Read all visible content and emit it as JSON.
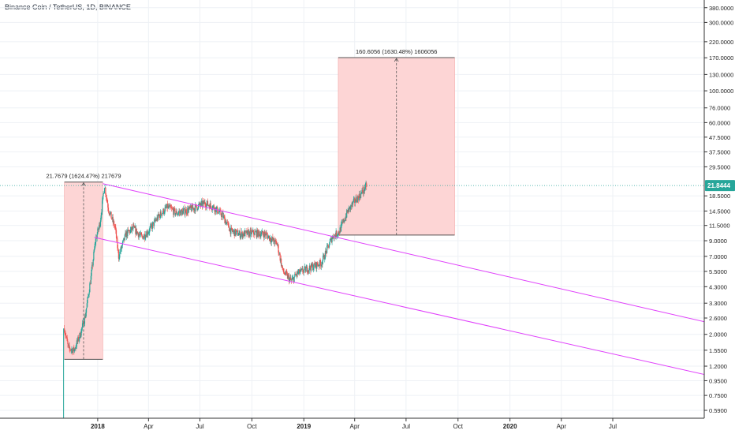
{
  "header": {
    "title": "Binance Coin / TetherUS, 1D, BINANCE"
  },
  "chart_data": {
    "type": "candlestick",
    "title": "Binance Coin / TetherUS, 1D, BINANCE",
    "scale": "log",
    "ylim": [
      0.52,
      430
    ],
    "y_ticks": [
      {
        "v": 380,
        "label": "380.0000"
      },
      {
        "v": 300,
        "label": "300.0000"
      },
      {
        "v": 220,
        "label": "220.0000"
      },
      {
        "v": 170,
        "label": "170.0000"
      },
      {
        "v": 130,
        "label": "130.0000"
      },
      {
        "v": 100,
        "label": "100.0000"
      },
      {
        "v": 76,
        "label": "76.0000"
      },
      {
        "v": 60,
        "label": "60.0000"
      },
      {
        "v": 47.5,
        "label": "47.5000"
      },
      {
        "v": 37.5,
        "label": "37.5000"
      },
      {
        "v": 29.5,
        "label": "29.5000"
      },
      {
        "v": 18.5,
        "label": "18.5000"
      },
      {
        "v": 14.5,
        "label": "14.5000"
      },
      {
        "v": 11.5,
        "label": "11.5000"
      },
      {
        "v": 9,
        "label": "9.0000"
      },
      {
        "v": 7,
        "label": "7.0000"
      },
      {
        "v": 5.5,
        "label": "5.5000"
      },
      {
        "v": 4.3,
        "label": "4.3000"
      },
      {
        "v": 3.3,
        "label": "3.3000"
      },
      {
        "v": 2.6,
        "label": "2.6000"
      },
      {
        "v": 2,
        "label": "2.0000"
      },
      {
        "v": 1.55,
        "label": "1.5500"
      },
      {
        "v": 1.2,
        "label": "1.2000"
      },
      {
        "v": 0.95,
        "label": "0.9500"
      },
      {
        "v": 0.75,
        "label": "0.7500"
      },
      {
        "v": 0.59,
        "label": "0.5900"
      }
    ],
    "x_ticks": [
      {
        "date": "2018-01-01",
        "label": "2018",
        "bold": true
      },
      {
        "date": "2018-04-01",
        "label": "Apr"
      },
      {
        "date": "2018-07-01",
        "label": "Jul"
      },
      {
        "date": "2018-10-01",
        "label": "Oct"
      },
      {
        "date": "2019-01-01",
        "label": "2019",
        "bold": true
      },
      {
        "date": "2019-04-01",
        "label": "Apr"
      },
      {
        "date": "2019-07-01",
        "label": "Jul"
      },
      {
        "date": "2019-10-01",
        "label": "Oct"
      },
      {
        "date": "2020-01-01",
        "label": "2020",
        "bold": true
      },
      {
        "date": "2020-04-01",
        "label": "Apr"
      },
      {
        "date": "2020-07-01",
        "label": "Jul"
      }
    ],
    "x_domain": [
      "2017-07-12",
      "2020-12-10"
    ],
    "last_price": {
      "value": 21.8444,
      "label": "21.8444"
    },
    "price_path": [
      {
        "date": "2017-11-03",
        "value": 2.2
      },
      {
        "date": "2017-11-10",
        "value": 1.6
      },
      {
        "date": "2017-11-20",
        "value": 1.55
      },
      {
        "date": "2017-12-01",
        "value": 2.0
      },
      {
        "date": "2017-12-10",
        "value": 2.7
      },
      {
        "date": "2017-12-20",
        "value": 5.0
      },
      {
        "date": "2017-12-28",
        "value": 9.0
      },
      {
        "date": "2018-01-05",
        "value": 12.0
      },
      {
        "date": "2018-01-13",
        "value": 22.0
      },
      {
        "date": "2018-01-20",
        "value": 15.0
      },
      {
        "date": "2018-02-01",
        "value": 11.0
      },
      {
        "date": "2018-02-07",
        "value": 7.0
      },
      {
        "date": "2018-02-20",
        "value": 10.0
      },
      {
        "date": "2018-03-05",
        "value": 11.0
      },
      {
        "date": "2018-03-20",
        "value": 9.5
      },
      {
        "date": "2018-04-01",
        "value": 10.5
      },
      {
        "date": "2018-04-20",
        "value": 13.5
      },
      {
        "date": "2018-05-05",
        "value": 15.5
      },
      {
        "date": "2018-05-20",
        "value": 14.0
      },
      {
        "date": "2018-06-05",
        "value": 14.5
      },
      {
        "date": "2018-06-25",
        "value": 15.5
      },
      {
        "date": "2018-07-10",
        "value": 16.5
      },
      {
        "date": "2018-07-25",
        "value": 15.5
      },
      {
        "date": "2018-08-10",
        "value": 13.5
      },
      {
        "date": "2018-08-25",
        "value": 10.5
      },
      {
        "date": "2018-09-10",
        "value": 10.0
      },
      {
        "date": "2018-10-05",
        "value": 10.2
      },
      {
        "date": "2018-10-25",
        "value": 10.0
      },
      {
        "date": "2018-11-15",
        "value": 8.5
      },
      {
        "date": "2018-11-25",
        "value": 5.5
      },
      {
        "date": "2018-12-10",
        "value": 4.7
      },
      {
        "date": "2018-12-20",
        "value": 5.3
      },
      {
        "date": "2019-01-10",
        "value": 5.8
      },
      {
        "date": "2019-02-01",
        "value": 6.3
      },
      {
        "date": "2019-02-20",
        "value": 9.5
      },
      {
        "date": "2019-03-05",
        "value": 10.5
      },
      {
        "date": "2019-03-20",
        "value": 14.5
      },
      {
        "date": "2019-04-01",
        "value": 17.0
      },
      {
        "date": "2019-04-12",
        "value": 19.0
      },
      {
        "date": "2019-04-22",
        "value": 21.8
      }
    ],
    "channel_upper": {
      "p1": {
        "date": "2018-01-10",
        "value": 22.5
      },
      "p2": {
        "date": "2020-12-10",
        "value": 2.45
      }
    },
    "channel_lower": {
      "p1": {
        "date": "2017-12-26",
        "value": 9.5
      },
      "p2": {
        "date": "2020-12-10",
        "value": 1.05
      }
    },
    "measure_1": {
      "label": "21.7679 (1624.47%) 217679",
      "from_date": "2017-11-03",
      "to_date": "2018-01-10",
      "low": 1.34,
      "high": 23.1
    },
    "measure_2": {
      "label": "160.6056 (1630.48%) 1606056",
      "from_date": "2019-03-03",
      "to_date": "2019-09-25",
      "low": 9.85,
      "high": 170.5
    },
    "colors": {
      "up": "#26a69a",
      "down": "#ef5350",
      "channel": "#e040fb",
      "measure_fill": "#fdd5d5",
      "measure_edge": "#f4a6a6",
      "price_line": "#26a69a",
      "grid": "#eef1f5",
      "axis": "#333333"
    }
  }
}
